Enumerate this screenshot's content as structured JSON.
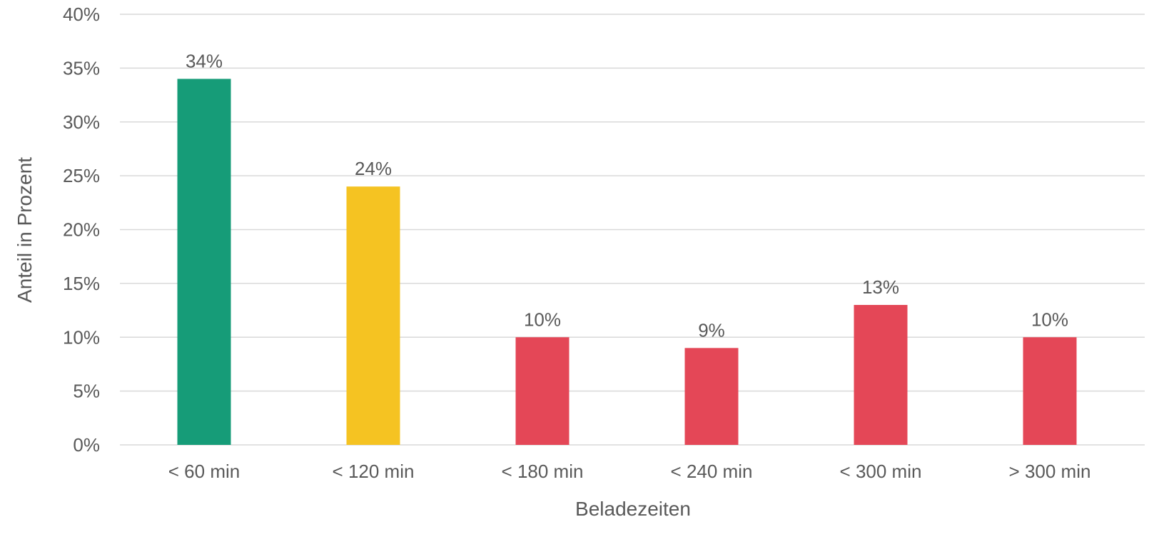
{
  "chart_data": {
    "type": "bar",
    "title": "",
    "xlabel": "Beladezeiten",
    "ylabel": "Anteil in Prozent",
    "categories": [
      "< 60 min",
      "< 120 min",
      "< 180 min",
      "< 240 min",
      "< 300 min",
      "> 300 min"
    ],
    "values": [
      34,
      24,
      10,
      9,
      13,
      10
    ],
    "data_labels": [
      "34%",
      "24%",
      "10%",
      "9%",
      "13%",
      "10%"
    ],
    "colors": [
      "#169c78",
      "#f5c322",
      "#e44757",
      "#e44757",
      "#e44757",
      "#e44757"
    ],
    "ylim": [
      0,
      40
    ],
    "yticks": [
      0,
      5,
      10,
      15,
      20,
      25,
      30,
      35,
      40
    ],
    "ytick_labels": [
      "0%",
      "5%",
      "10%",
      "15%",
      "20%",
      "25%",
      "30%",
      "35%",
      "40%"
    ],
    "grid": true,
    "legend": "none"
  }
}
